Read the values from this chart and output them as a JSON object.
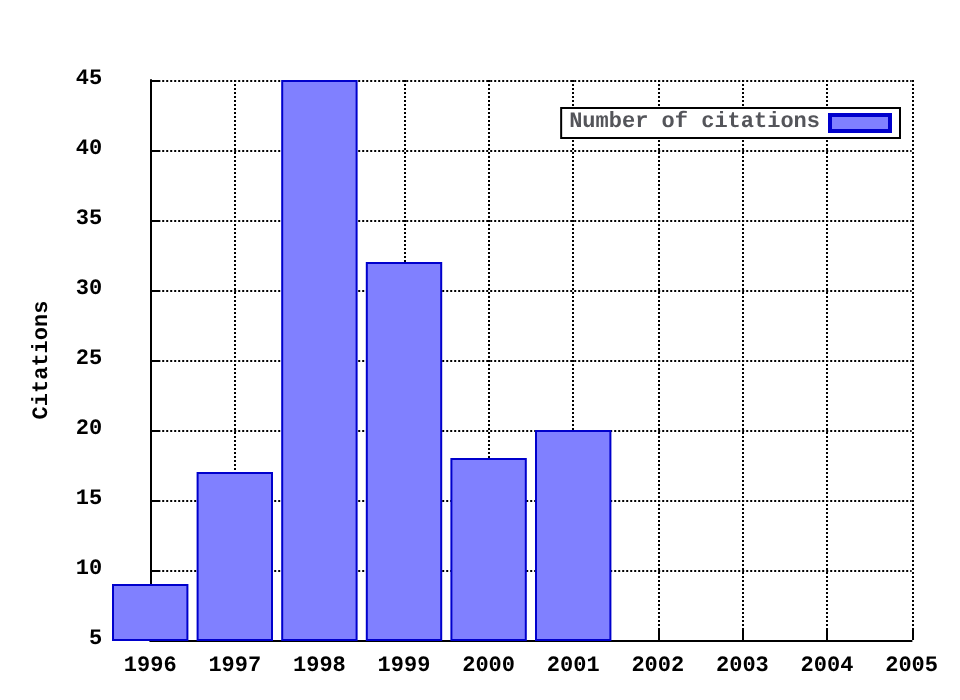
{
  "chart_data": {
    "type": "bar",
    "ylabel": "Citations",
    "x": [
      1996,
      1997,
      1998,
      1999,
      2000,
      2001
    ],
    "series": [
      {
        "name": "Number of citations",
        "color": "#8080ff",
        "values": [
          9,
          17,
          45,
          32,
          18,
          20
        ]
      }
    ],
    "xlim": [
      1996,
      2005
    ],
    "xticks": [
      1996,
      1997,
      1998,
      1999,
      2000,
      2001,
      2002,
      2003,
      2004,
      2005
    ],
    "ylim": [
      5,
      45
    ],
    "yticks": [
      5,
      10,
      15,
      20,
      25,
      30,
      35,
      40,
      45
    ],
    "grid": true,
    "legend": "top right"
  }
}
